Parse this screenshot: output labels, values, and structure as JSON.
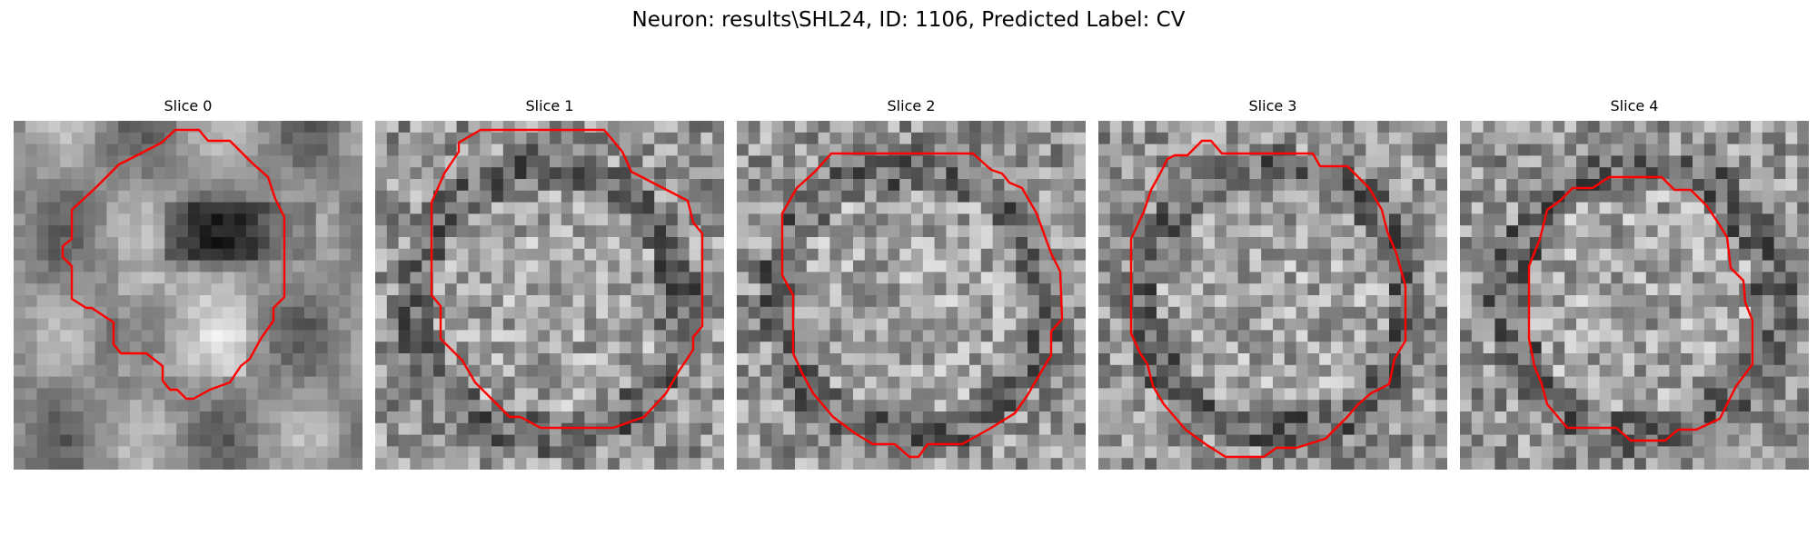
{
  "figure": {
    "suptitle": "Neuron: results\\SHL24, ID: 1106, Predicted Label: CV",
    "contour_color": "#ff0000",
    "colormap": "gray"
  },
  "panels": [
    {
      "title": "Slice 0"
    },
    {
      "title": "Slice 1"
    },
    {
      "title": "Slice 2"
    },
    {
      "title": "Slice 3"
    },
    {
      "title": "Slice 4"
    }
  ]
}
